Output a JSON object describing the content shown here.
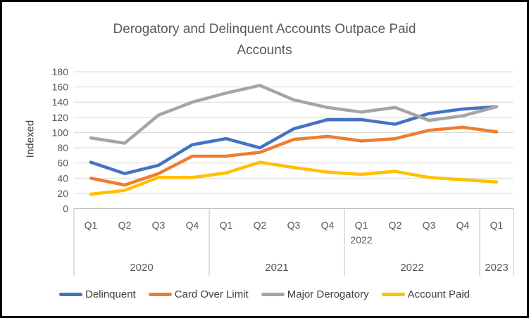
{
  "chart_data": {
    "type": "line",
    "title": "Derogatory and Delinquent Accounts Outpace Paid Accounts",
    "ylabel": "Indexed",
    "ylim": [
      0,
      180
    ],
    "ytick_step": 20,
    "grid": true,
    "legend_position": "bottom",
    "categories": [
      "Q1",
      "Q2",
      "Q3",
      "Q4",
      "Q1",
      "Q2",
      "Q3",
      "Q4",
      "Q1",
      "Q2",
      "Q3",
      "Q4",
      "Q1"
    ],
    "category_sublabels": [
      {
        "index": 8,
        "label": "2022"
      }
    ],
    "year_groups": [
      {
        "label": "2020",
        "span": 4
      },
      {
        "label": "2021",
        "span": 4
      },
      {
        "label": "2022",
        "span": 4
      },
      {
        "label": "2023",
        "span": 1
      }
    ],
    "series": [
      {
        "name": "Delinquent",
        "color": "#4472C4",
        "values": [
          61,
          46,
          57,
          84,
          92,
          80,
          105,
          117,
          117,
          111,
          125,
          131,
          134
        ]
      },
      {
        "name": "Card Over Limit",
        "color": "#ED7D31",
        "values": [
          40,
          31,
          46,
          69,
          69,
          74,
          91,
          95,
          89,
          92,
          103,
          107,
          101
        ]
      },
      {
        "name": "Major Derogatory",
        "color": "#A5A5A5",
        "values": [
          93,
          86,
          123,
          140,
          152,
          162,
          143,
          133,
          127,
          133,
          116,
          122,
          134
        ]
      },
      {
        "name": "Account Paid",
        "color": "#FFC000",
        "values": [
          19,
          24,
          41,
          41,
          47,
          61,
          54,
          48,
          45,
          49,
          41,
          38,
          35
        ]
      }
    ],
    "colors": {
      "text": "#595959",
      "grid": "#D9D9D9",
      "axis": "#BFBFBF"
    }
  }
}
